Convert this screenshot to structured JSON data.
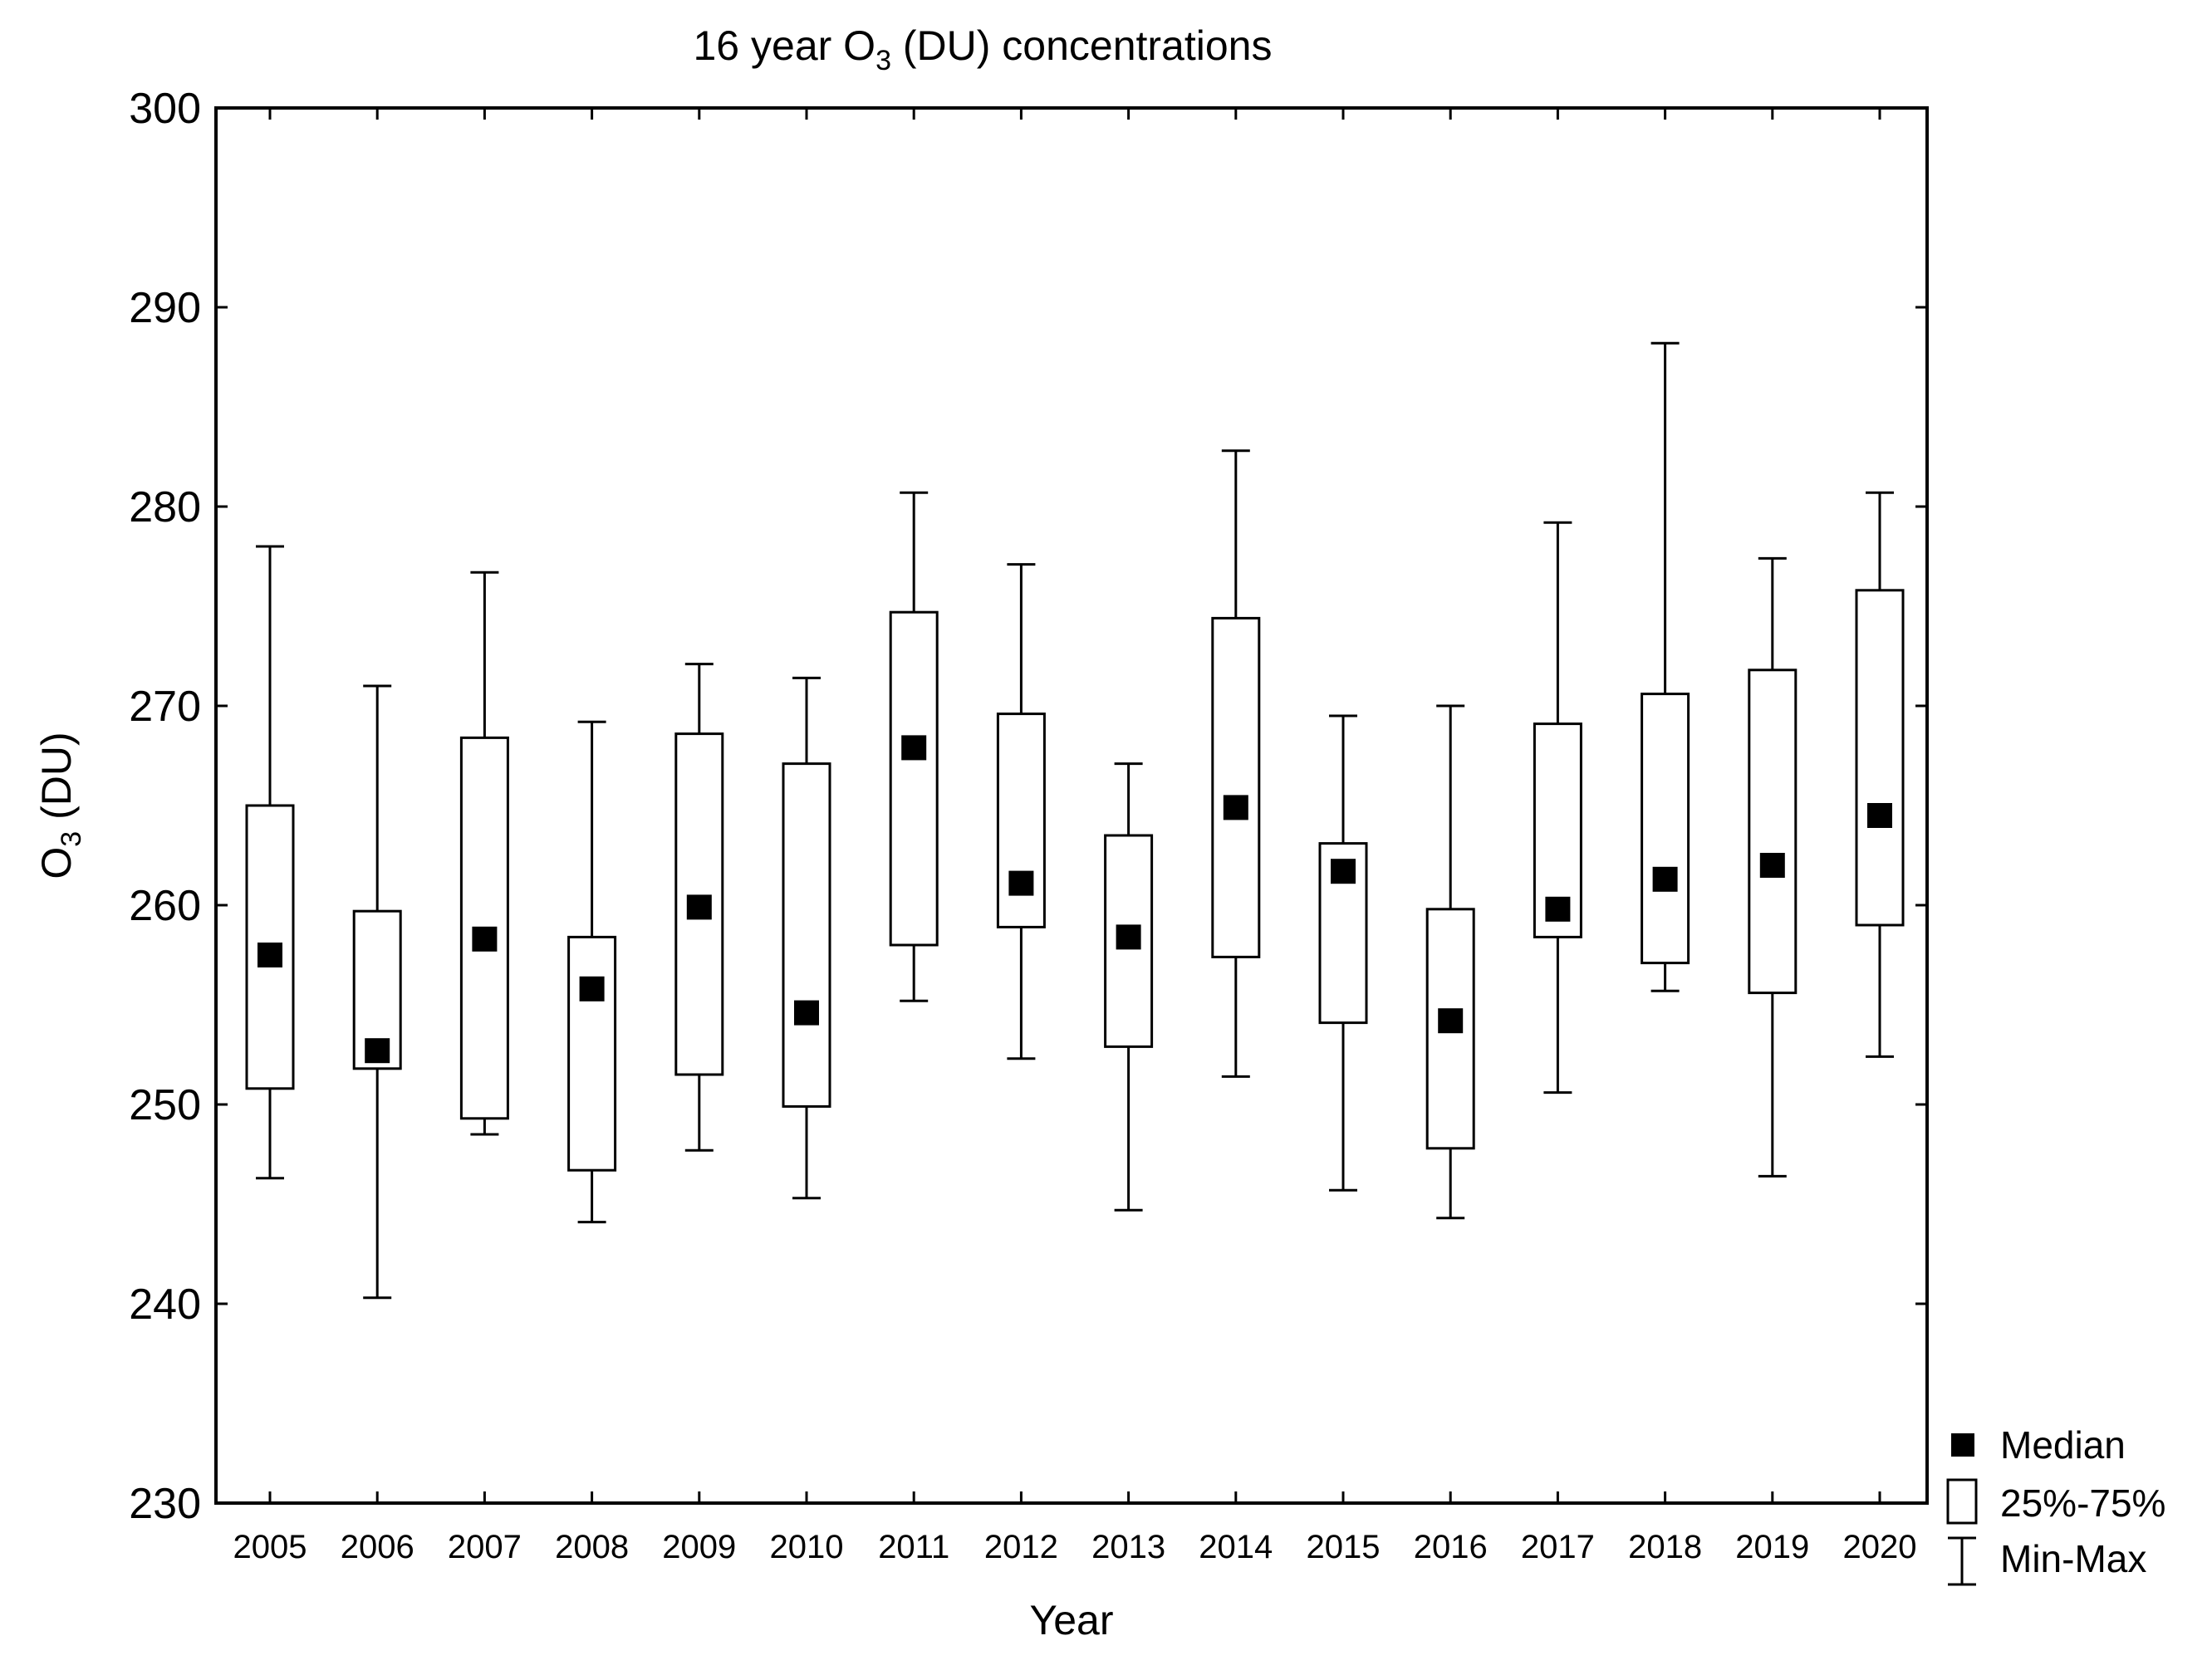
{
  "chart_data": {
    "type": "box",
    "title": {
      "prefix": "16 year O",
      "subscript": "3",
      "suffix": " (DU) concentrations"
    },
    "xlabel": "Year",
    "ylabel": {
      "prefix": "O",
      "subscript": "3",
      "suffix": " (DU)"
    },
    "ylim": [
      230,
      300
    ],
    "yticks": [
      230,
      240,
      250,
      260,
      270,
      280,
      290,
      300
    ],
    "grid": false,
    "legend_position": "right-bottom",
    "legend": {
      "median": "Median",
      "box": "25%-75%",
      "whisker": "Min-Max"
    },
    "categories": [
      "2005",
      "2006",
      "2007",
      "2008",
      "2009",
      "2010",
      "2011",
      "2012",
      "2013",
      "2014",
      "2015",
      "2016",
      "2017",
      "2018",
      "2019",
      "2020"
    ],
    "series": [
      {
        "year": "2005",
        "min": 246.3,
        "q1": 250.8,
        "median": 257.5,
        "q3": 265.0,
        "max": 278.0
      },
      {
        "year": "2006",
        "min": 240.3,
        "q1": 251.8,
        "median": 252.7,
        "q3": 259.7,
        "max": 271.0
      },
      {
        "year": "2007",
        "min": 248.5,
        "q1": 249.3,
        "median": 258.3,
        "q3": 268.4,
        "max": 276.7
      },
      {
        "year": "2008",
        "min": 244.1,
        "q1": 246.7,
        "median": 255.8,
        "q3": 258.4,
        "max": 269.2
      },
      {
        "year": "2009",
        "min": 247.7,
        "q1": 251.5,
        "median": 259.9,
        "q3": 268.6,
        "max": 272.1
      },
      {
        "year": "2010",
        "min": 245.3,
        "q1": 249.9,
        "median": 254.6,
        "q3": 267.1,
        "max": 271.4
      },
      {
        "year": "2011",
        "min": 255.2,
        "q1": 258.0,
        "median": 267.9,
        "q3": 274.7,
        "max": 280.7
      },
      {
        "year": "2012",
        "min": 252.3,
        "q1": 258.9,
        "median": 261.1,
        "q3": 269.6,
        "max": 277.1
      },
      {
        "year": "2013",
        "min": 244.7,
        "q1": 252.9,
        "median": 258.4,
        "q3": 263.5,
        "max": 267.1
      },
      {
        "year": "2014",
        "min": 251.4,
        "q1": 257.4,
        "median": 264.9,
        "q3": 274.4,
        "max": 282.8
      },
      {
        "year": "2015",
        "min": 245.7,
        "q1": 254.1,
        "median": 261.7,
        "q3": 263.1,
        "max": 269.5
      },
      {
        "year": "2016",
        "min": 244.3,
        "q1": 247.8,
        "median": 254.2,
        "q3": 259.8,
        "max": 270.0
      },
      {
        "year": "2017",
        "min": 250.6,
        "q1": 258.4,
        "median": 259.8,
        "q3": 269.1,
        "max": 279.2
      },
      {
        "year": "2018",
        "min": 255.7,
        "q1": 257.1,
        "median": 261.3,
        "q3": 270.6,
        "max": 288.2
      },
      {
        "year": "2019",
        "min": 246.4,
        "q1": 255.6,
        "median": 262.0,
        "q3": 271.8,
        "max": 277.4
      },
      {
        "year": "2020",
        "min": 252.4,
        "q1": 259.0,
        "median": 264.5,
        "q3": 275.8,
        "max": 280.7
      }
    ]
  }
}
